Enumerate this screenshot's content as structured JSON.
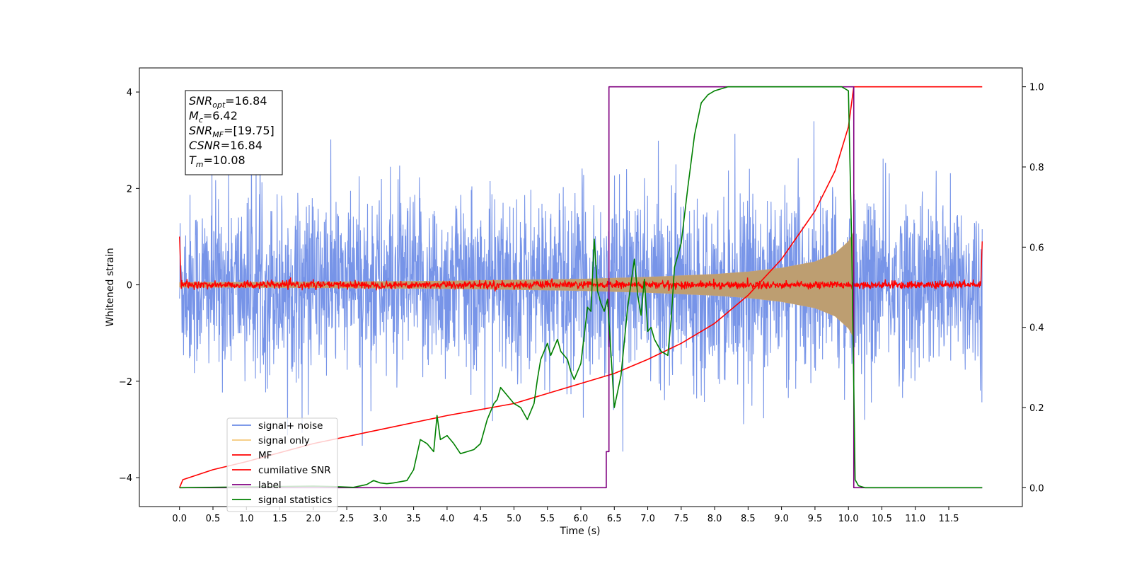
{
  "chart_data": {
    "type": "line",
    "xlabel": "Time (s)",
    "ylabel": "Whitened strain",
    "xlim": [
      -0.6,
      12.6
    ],
    "ylim": [
      -4.6,
      4.5
    ],
    "y2lim": [
      -0.047,
      1.047
    ],
    "x_ticks": [
      "0.0",
      "0.5",
      "1.0",
      "1.5",
      "2.0",
      "2.5",
      "3.0",
      "3.5",
      "4.0",
      "4.5",
      "5.0",
      "5.5",
      "6.0",
      "6.5",
      "7.0",
      "7.5",
      "8.0",
      "8.5",
      "9.0",
      "9.5",
      "10.0",
      "10.5",
      "11.0",
      "11.5"
    ],
    "y_ticks": [
      "4",
      "2",
      "0",
      "−2",
      "−4"
    ],
    "y2_ticks": [
      "1.0",
      "0.8",
      "0.6",
      "0.4",
      "0.2",
      "0.0"
    ],
    "annotation": [
      {
        "base": "SNR",
        "sub": "opt",
        "value": "=16.84"
      },
      {
        "base": "M",
        "sub": "c",
        "value": "=6.42"
      },
      {
        "base": "SNR",
        "sub": "MF",
        "value": "=[19.75]"
      },
      {
        "base": "CSNR",
        "sub": "",
        "value": "=16.84"
      },
      {
        "base": "T",
        "sub": "m",
        "value": "=10.08"
      }
    ],
    "legend_position": "lower-left",
    "series": [
      {
        "name": "signal+ noise",
        "color": "#6b8be6",
        "axis": "left",
        "description": "noise approx within ±2.2 with spikes reaching about ±3.6, t from 0 to 12"
      },
      {
        "name": "signal only",
        "color": "#f5c87a",
        "axis": "left",
        "description": "chirp envelope from ±0.05 at t=0 growing to ±1.1 at t=10.1, then ending",
        "envelope": {
          "x": [
            0,
            2,
            4,
            6,
            7,
            8,
            8.5,
            9,
            9.5,
            9.8,
            10.0,
            10.08
          ],
          "y": [
            0.05,
            0.06,
            0.08,
            0.12,
            0.16,
            0.22,
            0.27,
            0.35,
            0.48,
            0.65,
            0.9,
            1.1
          ]
        }
      },
      {
        "name": "MF",
        "color": "#ff0000",
        "axis": "left",
        "description": "matched filter output near 0 with small fluctuations, edge spikes at t=0 and t=12"
      },
      {
        "name": "cumilative SNR",
        "color": "#ff0000",
        "axis": "right",
        "x": [
          0,
          0.05,
          0.5,
          1,
          2,
          3,
          4,
          5,
          6,
          6.5,
          7,
          7.5,
          8,
          8.5,
          9,
          9.5,
          9.8,
          10.0,
          10.08,
          10.1,
          12.0
        ],
        "y": [
          0.0,
          0.02,
          0.045,
          0.065,
          0.11,
          0.145,
          0.18,
          0.21,
          0.26,
          0.285,
          0.32,
          0.36,
          0.41,
          0.48,
          0.57,
          0.69,
          0.79,
          0.9,
          1.0,
          1.0,
          1.0
        ]
      },
      {
        "name": "label",
        "color": "#800080",
        "axis": "right",
        "x": [
          0,
          6.38,
          6.38,
          6.42,
          6.42,
          10.08,
          10.08,
          10.12,
          10.12,
          12.0
        ],
        "y": [
          0,
          0,
          0.09,
          0.09,
          1.0,
          1.0,
          0,
          0,
          0,
          0
        ]
      },
      {
        "name": "signal statistics",
        "color": "#008000",
        "axis": "right",
        "x": [
          0,
          1,
          2,
          2.3,
          2.6,
          2.8,
          2.9,
          3.0,
          3.1,
          3.2,
          3.4,
          3.5,
          3.6,
          3.7,
          3.8,
          3.85,
          3.9,
          4.0,
          4.1,
          4.2,
          4.3,
          4.4,
          4.5,
          4.6,
          4.7,
          4.75,
          4.8,
          4.9,
          5.0,
          5.1,
          5.2,
          5.3,
          5.35,
          5.4,
          5.45,
          5.5,
          5.55,
          5.6,
          5.65,
          5.7,
          5.75,
          5.8,
          5.85,
          5.9,
          6.0,
          6.05,
          6.1,
          6.15,
          6.2,
          6.25,
          6.3,
          6.35,
          6.4,
          6.5,
          6.6,
          6.7,
          6.8,
          6.85,
          6.9,
          6.95,
          7.0,
          7.05,
          7.1,
          7.2,
          7.3,
          7.35,
          7.4,
          7.5,
          7.6,
          7.7,
          7.8,
          7.9,
          8.0,
          8.2,
          8.5,
          9.0,
          9.5,
          9.9,
          10.0,
          10.05,
          10.1,
          10.15,
          10.25,
          11.0,
          12.0
        ],
        "y": [
          0.0,
          0.002,
          0.004,
          0.003,
          0.001,
          0.008,
          0.018,
          0.012,
          0.01,
          0.012,
          0.018,
          0.045,
          0.12,
          0.11,
          0.09,
          0.18,
          0.12,
          0.13,
          0.11,
          0.085,
          0.09,
          0.095,
          0.11,
          0.17,
          0.21,
          0.22,
          0.25,
          0.23,
          0.21,
          0.2,
          0.17,
          0.21,
          0.27,
          0.32,
          0.34,
          0.36,
          0.33,
          0.35,
          0.37,
          0.34,
          0.33,
          0.32,
          0.29,
          0.27,
          0.31,
          0.38,
          0.45,
          0.44,
          0.62,
          0.49,
          0.46,
          0.44,
          0.47,
          0.2,
          0.28,
          0.45,
          0.57,
          0.48,
          0.43,
          0.52,
          0.39,
          0.4,
          0.37,
          0.34,
          0.33,
          0.42,
          0.55,
          0.61,
          0.75,
          0.88,
          0.96,
          0.98,
          0.99,
          1.0,
          1.0,
          1.0,
          1.0,
          1.0,
          0.99,
          0.6,
          0.02,
          0.005,
          0.0,
          0.0,
          0.0
        ]
      }
    ]
  }
}
